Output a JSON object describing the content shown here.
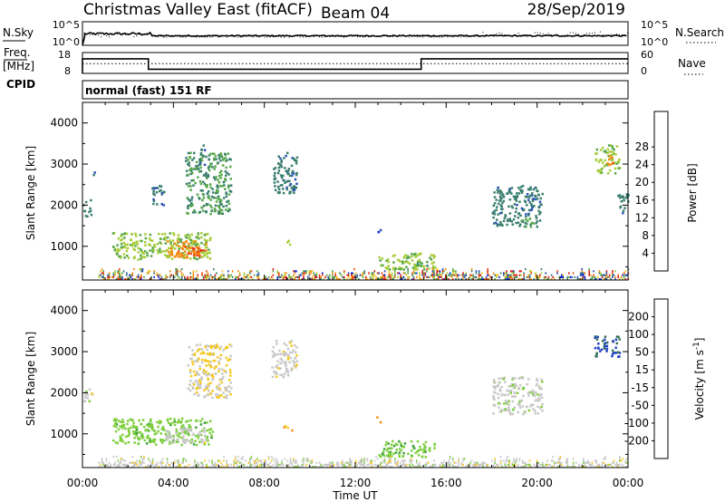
{
  "header": {
    "station": "Christmas Valley East (fitACF)",
    "beam": "Beam 04",
    "date": "28/Sep/2019"
  },
  "sky_panel": {
    "left_label": "N.Sky",
    "right_label": "N.Search",
    "left_ticks": [
      "10^5",
      "10^0"
    ],
    "right_ticks": [
      "10^5",
      "10^0"
    ]
  },
  "freq_panel": {
    "left_label_1": "Freq.",
    "left_label_2": "[MHz]",
    "right_label": "Nave",
    "left_ticks": [
      "18",
      "8"
    ],
    "right_ticks": [
      "60",
      "0"
    ],
    "cpid_label": "CPID",
    "mode_text": "normal (fast) 151 RF"
  },
  "time_axis": {
    "label": "Time UT",
    "ticks": [
      "00:00",
      "04:00",
      "08:00",
      "12:00",
      "16:00",
      "20:00",
      "00:00"
    ]
  },
  "chart_data": [
    {
      "type": "line",
      "name": "sky-search-noise",
      "ylim_log10": [
        0,
        5
      ],
      "series": [
        {
          "name": "N.Sky",
          "x_hours": [
            0,
            0.1,
            2.5,
            24
          ],
          "log10_values": [
            0,
            2.0,
            2.2,
            2.0
          ]
        },
        {
          "name": "N.Search",
          "x_hours": [
            0,
            18,
            24
          ],
          "log10_values": [
            1.9,
            2.4,
            2.1
          ]
        }
      ]
    },
    {
      "type": "line",
      "name": "frequency-nave",
      "series": [
        {
          "name": "Freq.",
          "units": "MHz",
          "ylim": [
            8,
            18
          ],
          "steps": [
            {
              "x_hours": 0,
              "value": 15
            },
            {
              "x_hours": 2.9,
              "value": 10
            },
            {
              "x_hours": 14.9,
              "value": 15
            },
            {
              "x_hours": 24,
              "value": 15
            }
          ]
        },
        {
          "name": "Nave",
          "ylim": [
            0,
            60
          ],
          "steps": [
            {
              "x_hours": 0,
              "value": 28
            },
            {
              "x_hours": 24,
              "value": 28
            }
          ]
        }
      ]
    },
    {
      "type": "heatmap",
      "name": "power",
      "xlabel": "Time UT",
      "ylabel": "Slant Range [km]",
      "xlim_hours": [
        0,
        24
      ],
      "ylim": [
        180,
        4500
      ],
      "y_ticks": [
        "1000",
        "2000",
        "3000",
        "4000"
      ],
      "colorbar_label": "Power [dB]",
      "colorbar_ticks": [
        "4",
        "8",
        "12",
        "16",
        "20",
        "24",
        "28"
      ],
      "colorbar_range": [
        0,
        30
      ],
      "colors": [
        "#0a1fd6",
        "#2a4fb8",
        "#3a7f6e",
        "#57a84a",
        "#a8cc3a",
        "#f2c21a",
        "#f48a12",
        "#f04510",
        "#d81818"
      ],
      "regions": [
        {
          "t0": 0.0,
          "t1": 0.35,
          "r0": 1750,
          "r1": 2150,
          "v": 8
        },
        {
          "t0": 0.4,
          "t1": 0.55,
          "r0": 2700,
          "r1": 2900,
          "v": 6
        },
        {
          "t0": 1.3,
          "t1": 5.7,
          "r0": 700,
          "r1": 1350,
          "v": 14
        },
        {
          "t0": 3.7,
          "t1": 5.4,
          "r0": 750,
          "r1": 1150,
          "v": 22
        },
        {
          "t0": 4.6,
          "t1": 5.3,
          "r0": 800,
          "r1": 1000,
          "v": 26
        },
        {
          "t0": 3.0,
          "t1": 3.6,
          "r0": 2000,
          "r1": 2500,
          "v": 8
        },
        {
          "t0": 4.5,
          "t1": 6.5,
          "r0": 1800,
          "r1": 3300,
          "v": 10
        },
        {
          "t0": 5.1,
          "t1": 5.4,
          "r0": 3000,
          "r1": 3500,
          "v": 8
        },
        {
          "t0": 8.3,
          "t1": 9.4,
          "r0": 2300,
          "r1": 3300,
          "v": 8
        },
        {
          "t0": 8.9,
          "t1": 9.1,
          "r0": 1050,
          "r1": 1250,
          "v": 16
        },
        {
          "t0": 12.9,
          "t1": 13.1,
          "r0": 1300,
          "r1": 1450,
          "v": 4
        },
        {
          "t0": 13.0,
          "t1": 15.5,
          "r0": 450,
          "r1": 850,
          "v": 14
        },
        {
          "t0": 14.6,
          "t1": 15.2,
          "r0": 500,
          "r1": 650,
          "v": 10
        },
        {
          "t0": 18.0,
          "t1": 20.2,
          "r0": 1500,
          "r1": 2500,
          "v": 8
        },
        {
          "t0": 19.2,
          "t1": 19.8,
          "r0": 1500,
          "r1": 1700,
          "v": 12
        },
        {
          "t0": 22.5,
          "t1": 23.6,
          "r0": 2800,
          "r1": 3500,
          "v": 14
        },
        {
          "t0": 23.0,
          "t1": 23.3,
          "r0": 3000,
          "r1": 3300,
          "v": 22
        },
        {
          "t0": 23.5,
          "t1": 24.0,
          "r0": 1800,
          "r1": 2300,
          "v": 8
        }
      ],
      "ground_band": {
        "t0": 0.7,
        "t1": 24.0,
        "r0": 180,
        "r1": 420,
        "v_range": [
          2,
          30
        ]
      }
    },
    {
      "type": "heatmap",
      "name": "velocity",
      "xlabel": "Time UT",
      "ylabel": "Slant Range [km]",
      "xlim_hours": [
        0,
        24
      ],
      "ylim": [
        180,
        4500
      ],
      "y_ticks": [
        "1000",
        "2000",
        "3000",
        "4000"
      ],
      "colorbar_label": "Velocity [m s^-1]",
      "colorbar_ticks": [
        "200",
        "100",
        "50",
        "15",
        "-15",
        "-50",
        "-100",
        "-200"
      ],
      "colorbar_range": [
        -250,
        250
      ],
      "colors": [
        "#2040c0",
        "#2f6f4f",
        "#3f9f3f",
        "#7fcf3f",
        "#c8c8c8",
        "#f4c820",
        "#f49010",
        "#f05010",
        "#e01010"
      ],
      "regions": [
        {
          "t0": 0.0,
          "t1": 0.4,
          "r0": 1800,
          "r1": 2200,
          "v": 0
        },
        {
          "t0": 1.3,
          "t1": 5.7,
          "r0": 750,
          "r1": 1400,
          "v": 60
        },
        {
          "t0": 3.6,
          "t1": 5.4,
          "r0": 800,
          "r1": 1150,
          "v": 0
        },
        {
          "t0": 8.8,
          "t1": 9.2,
          "r0": 1100,
          "r1": 1250,
          "v": -80
        },
        {
          "t0": 12.9,
          "t1": 13.1,
          "r0": 1300,
          "r1": 1450,
          "v": -90
        },
        {
          "t0": 13.0,
          "t1": 15.5,
          "r0": 450,
          "r1": 850,
          "v": 70
        },
        {
          "t0": 4.6,
          "t1": 6.5,
          "r0": 1900,
          "r1": 3200,
          "v": -30
        },
        {
          "t0": 8.3,
          "t1": 9.4,
          "r0": 2400,
          "r1": 3300,
          "v": -10
        },
        {
          "t0": 22.5,
          "t1": 23.6,
          "r0": 2900,
          "r1": 3400,
          "v": 200
        },
        {
          "t0": 18.0,
          "t1": 20.2,
          "r0": 1500,
          "r1": 2400,
          "v": 10
        }
      ],
      "ground_band": {
        "t0": 0.7,
        "t1": 24.0,
        "r0": 180,
        "r1": 420,
        "v_range": [
          -40,
          40
        ]
      }
    }
  ]
}
